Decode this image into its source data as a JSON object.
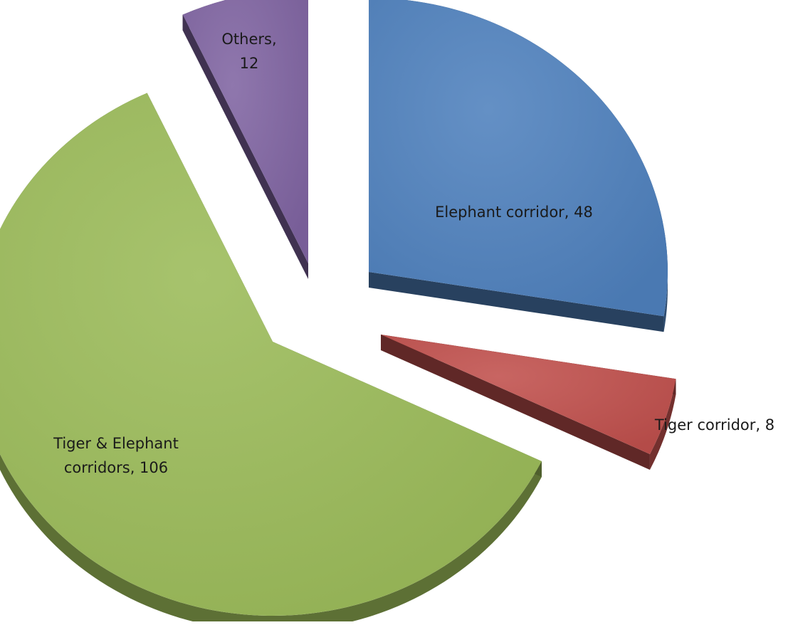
{
  "chart_data": {
    "type": "pie",
    "style": "3d-exploded",
    "slices": [
      {
        "label": "Elephant corridor",
        "value": 48,
        "color": "#4F81BD"
      },
      {
        "label": "Tiger corridor",
        "value": 8,
        "color": "#C0504D"
      },
      {
        "label": "Tiger & Elephant corridors",
        "value": 106,
        "color": "#9BBB59"
      },
      {
        "label": "Others",
        "value": 12,
        "color": "#8064A2"
      }
    ],
    "data_labels": [
      {
        "lines": [
          "Elephant corridor, 48"
        ]
      },
      {
        "lines": [
          "Tiger corridor, 8"
        ]
      },
      {
        "lines": [
          "Tiger & Elephant",
          "corridors, 106"
        ]
      },
      {
        "lines": [
          "Others,",
          "12"
        ]
      }
    ]
  }
}
